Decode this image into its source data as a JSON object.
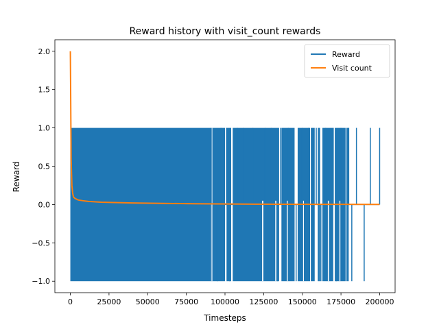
{
  "chart_data": {
    "type": "line",
    "title": "Reward history with visit_count rewards",
    "xlabel": "Timesteps",
    "ylabel": "Reward",
    "xlim": [
      -10000,
      210000
    ],
    "ylim": [
      -1.15,
      2.15
    ],
    "xticks": [
      0,
      25000,
      50000,
      75000,
      100000,
      125000,
      150000,
      175000,
      200000
    ],
    "xtick_labels": [
      "0",
      "25000",
      "50000",
      "75000",
      "100000",
      "125000",
      "150000",
      "175000",
      "200000"
    ],
    "yticks": [
      -1.0,
      -0.5,
      0.0,
      0.5,
      1.0,
      1.5,
      2.0
    ],
    "ytick_labels": [
      "−1.0",
      "−0.5",
      "0.0",
      "0.5",
      "1.0",
      "1.5",
      "2.0"
    ],
    "grid": false,
    "legend_position": "upper right",
    "series": [
      {
        "name": "Reward",
        "color": "#1f77b4",
        "note_values": "dense oscillation between -1 and 1",
        "dense_range": [
          0,
          92000
        ],
        "spikes": [
          {
            "x": 91000,
            "dir": 1
          },
          {
            "x": 95000,
            "dir": -1
          },
          {
            "x": 97500,
            "dir": 1
          },
          {
            "x": 101000,
            "dir": 1
          },
          {
            "x": 103000,
            "dir": -1
          },
          {
            "x": 108000,
            "dir": 1
          },
          {
            "x": 112000,
            "dir": 1
          },
          {
            "x": 118000,
            "dir": 1
          },
          {
            "x": 126000,
            "dir": 1
          },
          {
            "x": 130000,
            "dir": 1
          },
          {
            "x": 134000,
            "dir": -1
          },
          {
            "x": 136000,
            "dir": 1
          },
          {
            "x": 141000,
            "dir": 1
          },
          {
            "x": 146000,
            "dir": -1
          },
          {
            "x": 150000,
            "dir": 1
          },
          {
            "x": 154000,
            "dir": 1
          },
          {
            "x": 159000,
            "dir": 1
          },
          {
            "x": 162000,
            "dir": -1
          },
          {
            "x": 165000,
            "dir": 1
          },
          {
            "x": 170000,
            "dir": 1
          },
          {
            "x": 172000,
            "dir": -1
          },
          {
            "x": 175000,
            "dir": 1
          },
          {
            "x": 180000,
            "dir": 1
          },
          {
            "x": 182000,
            "dir": -1
          },
          {
            "x": 185000,
            "dir": 1
          },
          {
            "x": 190000,
            "dir": -1
          },
          {
            "x": 194000,
            "dir": 1
          },
          {
            "x": 200000,
            "dir": 1
          }
        ]
      },
      {
        "name": "Visit count",
        "color": "#ff7f0e",
        "x": [
          0,
          200,
          500,
          1000,
          1500,
          2000,
          3000,
          5000,
          8000,
          12000,
          20000,
          40000,
          80000,
          120000,
          160000,
          200000
        ],
        "y": [
          2.0,
          1.5,
          0.6,
          0.25,
          0.15,
          0.1,
          0.08,
          0.06,
          0.05,
          0.04,
          0.03,
          0.02,
          0.01,
          0.005,
          0.003,
          0.002
        ]
      }
    ]
  }
}
